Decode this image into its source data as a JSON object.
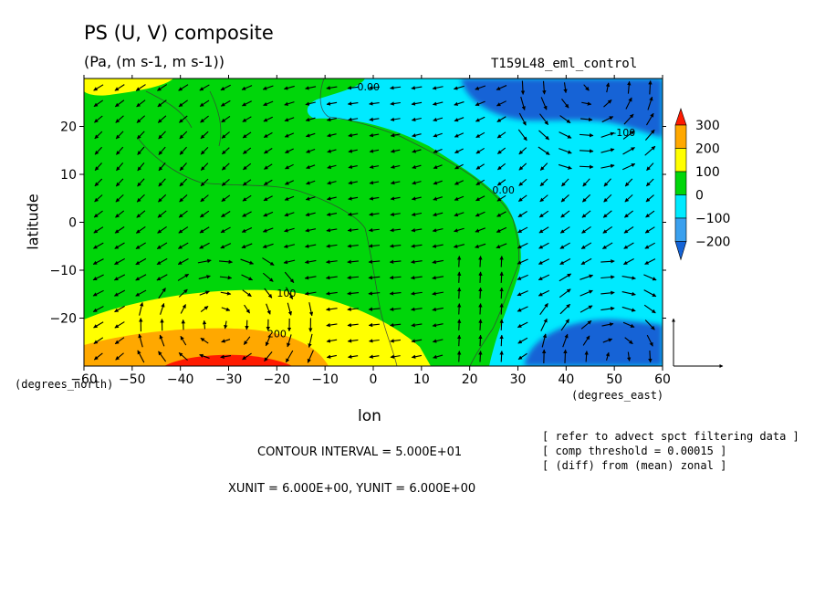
{
  "header": {
    "title": "PS (U, V) composite",
    "units": "(Pa, (m s-1, m s-1))",
    "run": "T159L48_eml_control"
  },
  "axes": {
    "xlabel": "lon",
    "ylabel": "latitude",
    "x_units": "(degrees_east)",
    "y_units": "(degrees_north)"
  },
  "footer": {
    "contour_interval": "CONTOUR INTERVAL = 5.000E+01",
    "xy_unit": "XUNIT = 6.000E+00, YUNIT = 6.000E+00",
    "notes": [
      "[ refer to advect spct filtering data ]",
      "[ comp threshold = 0.00015 ]",
      "[ (diff) from (mean) zonal ]"
    ]
  },
  "chart_data": {
    "type": "heatmap",
    "title": "PS (U, V) composite",
    "xlabel": "lon",
    "ylabel": "latitude",
    "xlim": [
      -60,
      60
    ],
    "ylim": [
      -30,
      30
    ],
    "x_ticks": [
      -60,
      -50,
      -40,
      -30,
      -20,
      -10,
      0,
      10,
      20,
      30,
      40,
      50,
      60
    ],
    "y_ticks": [
      -20,
      -10,
      0,
      10,
      20
    ],
    "colorbar": {
      "levels": [
        -200,
        -100,
        0,
        100,
        200,
        300
      ],
      "labels": [
        "300",
        "200",
        "100",
        "0",
        "−100",
        "−200"
      ],
      "colors": [
        "#1463d6",
        "#3aa0ee",
        "#00eaff",
        "#00d60a",
        "#ffff00",
        "#ffa800",
        "#ff1a00"
      ]
    },
    "contour_labels": [
      {
        "text": "0.00",
        "lon": -1,
        "lat": 27.5
      },
      {
        "text": "-100",
        "lon": 52,
        "lat": 18
      },
      {
        "text": "0.00",
        "lon": 27,
        "lat": 6
      },
      {
        "text": "100",
        "lon": -18,
        "lat": -15.5
      },
      {
        "text": "200",
        "lon": -20,
        "lat": -24
      }
    ],
    "regions": [
      {
        "level": "-200 to -100",
        "description": "northeast",
        "lon": 45,
        "lat": 27
      },
      {
        "level": "-100 to 0",
        "description": "east",
        "lon": 45,
        "lat": 0
      },
      {
        "level": "-200 to -100",
        "description": "southeast",
        "lon": 50,
        "lat": -26
      },
      {
        "level": "0 to 100",
        "description": "central",
        "lon": -10,
        "lat": 5
      },
      {
        "level": "100 to 200",
        "description": "south",
        "lon": -30,
        "lat": -22
      },
      {
        "level": "200 to 300",
        "description": "far south",
        "lon": -35,
        "lat": -27
      },
      {
        "level": "300+",
        "description": "southern edge",
        "lon": -30,
        "lat": -30
      }
    ],
    "grid": false,
    "vectors": true,
    "reference_vector": "unit arrows at lower right"
  }
}
